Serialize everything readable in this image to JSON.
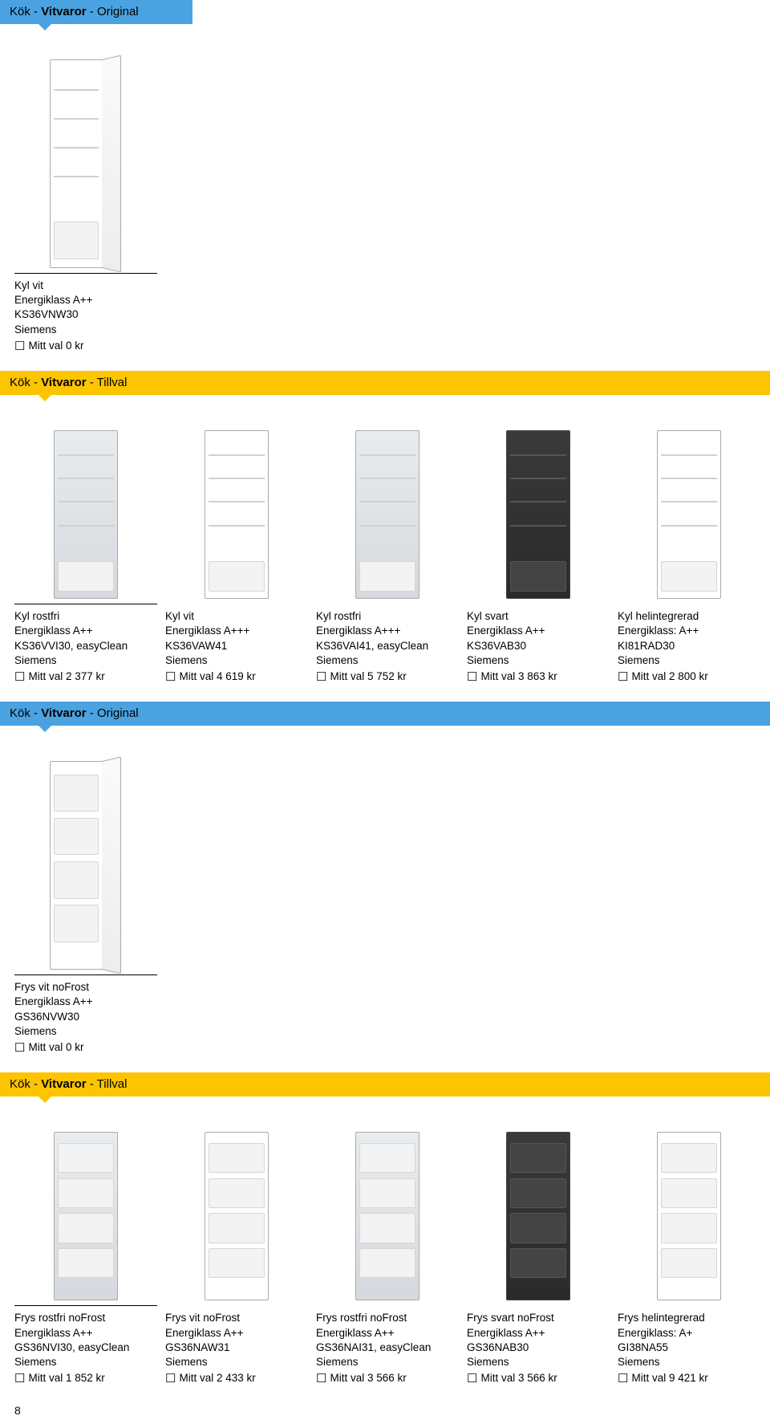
{
  "page_number": "8",
  "banners": {
    "b1": {
      "pre": "Kök - ",
      "bold": "Vitvaror",
      "post": " - Original"
    },
    "b2": {
      "pre": "Kök - ",
      "bold": "Vitvaror",
      "post": " - Tillval"
    },
    "b3": {
      "pre": "Kök - ",
      "bold": "Vitvaror",
      "post": " - Original"
    },
    "b4": {
      "pre": "Kök - ",
      "bold": "Vitvaror",
      "post": " - Tillval"
    }
  },
  "checkbox_glyph": "☐",
  "price_prefix": "Mitt val ",
  "section1": {
    "item": {
      "l1": "Kyl vit",
      "l2": "Energiklass A++",
      "l3": "KS36VNW30",
      "l4": "Siemens",
      "price": "0 kr"
    }
  },
  "section2": {
    "items": [
      {
        "l1": "Kyl rostfri",
        "l2": "Energiklass A++",
        "l3": "KS36VVI30, easyClean",
        "l4": "Siemens",
        "price": "2 377 kr",
        "hr": true,
        "finish": "steel"
      },
      {
        "l1": "Kyl vit",
        "l2": "Energiklass A+++",
        "l3": "KS36VAW41",
        "l4": "Siemens",
        "price": "4 619 kr",
        "hr": false,
        "finish": "white"
      },
      {
        "l1": "Kyl rostfri",
        "l2": "Energiklass A+++",
        "l3": "KS36VAI41, easyClean",
        "l4": "Siemens",
        "price": "5 752 kr",
        "hr": false,
        "finish": "steel"
      },
      {
        "l1": "Kyl svart",
        "l2": "Energiklass A++",
        "l3": "KS36VAB30",
        "l4": "Siemens",
        "price": "3 863 kr",
        "hr": false,
        "finish": "dark"
      },
      {
        "l1": "Kyl helintegrerad",
        "l2": "Energiklass: A++",
        "l3": "KI81RAD30",
        "l4": "Siemens",
        "price": "2 800 kr",
        "hr": false,
        "finish": "white"
      }
    ]
  },
  "section3": {
    "item": {
      "l1": "Frys vit noFrost",
      "l2": "Energiklass A++",
      "l3": "GS36NVW30",
      "l4": "Siemens",
      "price": "0 kr"
    }
  },
  "section4": {
    "items": [
      {
        "l1": "Frys rostfri noFrost",
        "l2": "Energiklass A++",
        "l3": "GS36NVI30, easyClean",
        "l4": "Siemens",
        "price": "1 852 kr",
        "hr": true,
        "finish": "steel"
      },
      {
        "l1": "Frys vit noFrost",
        "l2": "Energiklass A++",
        "l3": "GS36NAW31",
        "l4": "Siemens",
        "price": "2 433 kr",
        "hr": false,
        "finish": "white"
      },
      {
        "l1": "Frys rostfri noFrost",
        "l2": "Energiklass A++",
        "l3": "GS36NAI31, easyClean",
        "l4": "Siemens",
        "price": "3 566 kr",
        "hr": false,
        "finish": "steel"
      },
      {
        "l1": "Frys svart noFrost",
        "l2": "Energiklass A++",
        "l3": "GS36NAB30",
        "l4": "Siemens",
        "price": "3 566 kr",
        "hr": false,
        "finish": "dark"
      },
      {
        "l1": "Frys helintegrerad",
        "l2": "Energiklass: A+",
        "l3": "GI38NA55",
        "l4": "Siemens",
        "price": "9 421 kr",
        "hr": false,
        "finish": "white"
      }
    ]
  }
}
